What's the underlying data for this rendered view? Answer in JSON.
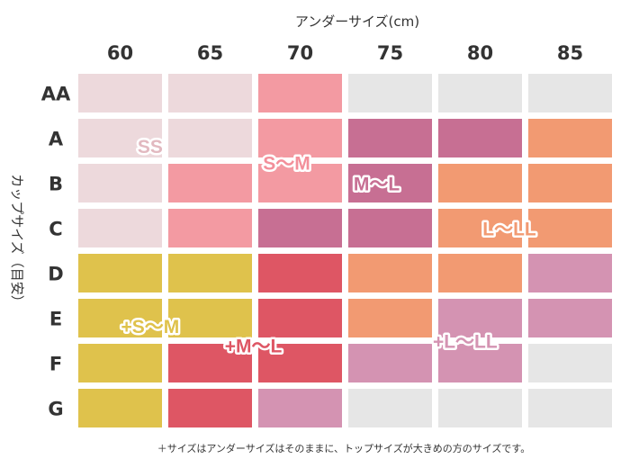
{
  "chart_data": {
    "type": "heatmap",
    "title": "",
    "xlabel": "アンダーサイズ(cm)",
    "ylabel": "カップサイズ（目安）",
    "columns": [
      "60",
      "65",
      "70",
      "75",
      "80",
      "85"
    ],
    "rows": [
      "AA",
      "A",
      "B",
      "C",
      "D",
      "E",
      "F",
      "G"
    ],
    "grid": [
      [
        "SS",
        "SS",
        "S〜M",
        "",
        "",
        ""
      ],
      [
        "SS",
        "SS",
        "S〜M",
        "M〜L",
        "M〜L",
        "L〜LL"
      ],
      [
        "SS",
        "S〜M",
        "S〜M",
        "M〜L",
        "L〜LL",
        "L〜LL"
      ],
      [
        "SS",
        "S〜M",
        "M〜L",
        "M〜L",
        "L〜LL",
        "L〜LL"
      ],
      [
        "+S〜M",
        "+S〜M",
        "+M〜L",
        "L〜LL",
        "L〜LL",
        "+L〜LL"
      ],
      [
        "+S〜M",
        "+S〜M",
        "+M〜L",
        "L〜LL",
        "+L〜LL",
        "+L〜LL"
      ],
      [
        "+S〜M",
        "+M〜L",
        "+M〜L",
        "+L〜LL",
        "+L〜LL",
        ""
      ],
      [
        "+S〜M",
        "+M〜L",
        "+L〜LL",
        "",
        "",
        ""
      ]
    ],
    "categories": [
      {
        "name": "SS",
        "color": "#edd9dc",
        "text_color": "#e2b9c0"
      },
      {
        "name": "S〜M",
        "color": "#f39aa2",
        "text_color": "#f38f9a"
      },
      {
        "name": "M〜L",
        "color": "#c76f93",
        "text_color": "#c76f93"
      },
      {
        "name": "L〜LL",
        "color": "#f29a72",
        "text_color": "#f29a72"
      },
      {
        "name": "+S〜M",
        "color": "#dfc24c",
        "text_color": "#dfc24c"
      },
      {
        "name": "+M〜L",
        "color": "#de5664",
        "text_color": "#de5664"
      },
      {
        "name": "+L〜LL",
        "color": "#d493b2",
        "text_color": "#d493b2"
      },
      {
        "name": "",
        "color": "#e6e6e6",
        "text_color": "#e6e6e6"
      }
    ],
    "footnote": "＋サイズはアンダーサイズはそのままに、トップサイズが大きめの方のサイズです。"
  }
}
